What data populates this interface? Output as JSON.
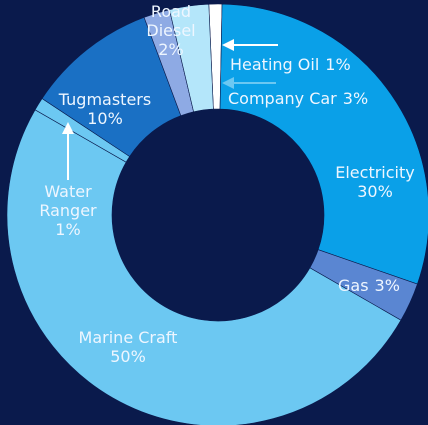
{
  "chart_data": {
    "type": "donut",
    "categories": [
      "Heating Oil",
      "Electricity",
      "Gas",
      "Marine Craft",
      "Water Ranger",
      "Tugmasters",
      "Road Diesel",
      "Company Car"
    ],
    "values": [
      1,
      30,
      3,
      50,
      1,
      10,
      2,
      3
    ],
    "value_labels": [
      "1%",
      "30%",
      "3%",
      "50%",
      "1%",
      "10%",
      "2%",
      "3%"
    ],
    "colors": [
      "#ffffff",
      "#0aa0e8",
      "#5a86d2",
      "#6cc8f2",
      "#6cc8f2",
      "#1a70c4",
      "#8eaae4",
      "#b4e6fa"
    ]
  }
}
